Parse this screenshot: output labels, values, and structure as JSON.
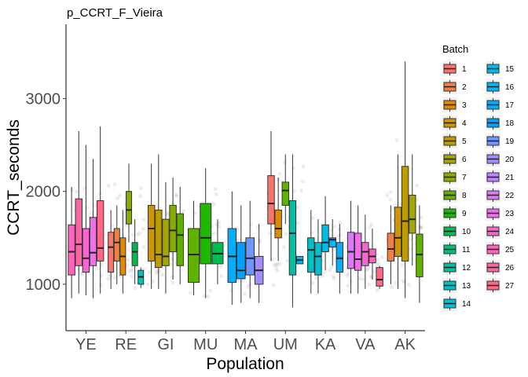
{
  "chart_data": {
    "type": "boxplot",
    "title": "p_CCRT_F_Vieira",
    "xlabel": "Population",
    "ylabel": "CCRT_seconds",
    "ylim": [
      500,
      3800
    ],
    "yticks": [
      1000,
      2000,
      3000
    ],
    "ytick_labels": [
      "1000",
      "2000",
      "3000"
    ],
    "categories": [
      "YE",
      "RE",
      "GI",
      "MU",
      "MA",
      "UM",
      "KA",
      "VA",
      "AK"
    ],
    "legend": {
      "title": "Batch",
      "placement": "right",
      "entries": [
        "1",
        "2",
        "3",
        "4",
        "5",
        "6",
        "7",
        "8",
        "9",
        "10",
        "11",
        "12",
        "13",
        "14",
        "15",
        "16",
        "17",
        "18",
        "19",
        "20",
        "21",
        "22",
        "23",
        "24",
        "25",
        "26",
        "27"
      ]
    },
    "batch_colors": [
      "#F8766D",
      "#EE8044",
      "#E18A00",
      "#CF9400",
      "#BB9D00",
      "#A3A500",
      "#86AC00",
      "#61B200",
      "#1EB800",
      "#00BC4F",
      "#00BF7C",
      "#00C0A0",
      "#00C1BE",
      "#00BFD6",
      "#00BCEB",
      "#00B6FA",
      "#00ADFF",
      "#00A1FF",
      "#6F96FF",
      "#A38CFF",
      "#C283FF",
      "#DB79F9",
      "#EE6FE8",
      "#F966D3",
      "#FF63BC",
      "#FF64A2",
      "#FF6886"
    ],
    "groups": [
      {
        "population": "YE",
        "boxes": [
          {
            "batch": 25,
            "q1": 1100,
            "median": 1350,
            "q3": 1640,
            "min": 850,
            "max": 2050
          },
          {
            "batch": 26,
            "q1": 1200,
            "median": 1430,
            "q3": 1920,
            "min": 900,
            "max": 2650
          },
          {
            "batch": 24,
            "q1": 1130,
            "median": 1280,
            "q3": 1600,
            "min": 880,
            "max": 2500
          },
          {
            "batch": 23,
            "q1": 1200,
            "median": 1340,
            "q3": 1720,
            "min": 850,
            "max": 2350
          },
          {
            "batch": 27,
            "q1": 1250,
            "median": 1390,
            "q3": 1900,
            "min": 900,
            "max": 2700
          }
        ]
      },
      {
        "population": "RE",
        "boxes": [
          {
            "batch": 1,
            "q1": 1130,
            "median": 1400,
            "q3": 1560,
            "min": 950,
            "max": 1800
          },
          {
            "batch": 2,
            "q1": 1250,
            "median": 1450,
            "q3": 1600,
            "min": 1000,
            "max": 1850
          },
          {
            "batch": 3,
            "q1": 1100,
            "median": 1300,
            "q3": 1500,
            "min": 900,
            "max": 1800
          },
          {
            "batch": 7,
            "q1": 1650,
            "median": 1800,
            "q3": 2000,
            "min": 1450,
            "max": 2300
          },
          {
            "batch": 10,
            "q1": 1200,
            "median": 1350,
            "q3": 1450,
            "min": 1000,
            "max": 1700
          },
          {
            "batch": 13,
            "q1": 1000,
            "median": 1080,
            "q3": 1150,
            "min": 960,
            "max": 1180
          }
        ]
      },
      {
        "population": "GI",
        "boxes": [
          {
            "batch": 4,
            "q1": 1250,
            "median": 1600,
            "q3": 1850,
            "min": 950,
            "max": 2300
          },
          {
            "batch": 5,
            "q1": 1180,
            "median": 1320,
            "q3": 1800,
            "min": 950,
            "max": 2400
          },
          {
            "batch": 6,
            "q1": 1200,
            "median": 1300,
            "q3": 1700,
            "min": 900,
            "max": 2100
          },
          {
            "batch": 7,
            "q1": 1350,
            "median": 1580,
            "q3": 1850,
            "min": 1050,
            "max": 2150
          },
          {
            "batch": 8,
            "q1": 1200,
            "median": 1530,
            "q3": 1760,
            "min": 1000,
            "max": 2050
          }
        ]
      },
      {
        "population": "MU",
        "boxes": [
          {
            "batch": 8,
            "q1": 1020,
            "median": 1320,
            "q3": 1600,
            "min": 880,
            "max": 1900
          },
          {
            "batch": 9,
            "q1": 1220,
            "median": 1500,
            "q3": 1870,
            "min": 850,
            "max": 2250
          },
          {
            "batch": 10,
            "q1": 1220,
            "median": 1330,
            "q3": 1450,
            "min": 1000,
            "max": 1700
          }
        ]
      },
      {
        "population": "MA",
        "boxes": [
          {
            "batch": 17,
            "q1": 1020,
            "median": 1300,
            "q3": 1600,
            "min": 780,
            "max": 2000
          },
          {
            "batch": 18,
            "q1": 1060,
            "median": 1150,
            "q3": 1450,
            "min": 800,
            "max": 1850
          },
          {
            "batch": 19,
            "q1": 1100,
            "median": 1280,
            "q3": 1500,
            "min": 850,
            "max": 1900
          },
          {
            "batch": 20,
            "q1": 1000,
            "median": 1150,
            "q3": 1300,
            "min": 800,
            "max": 1650
          }
        ]
      },
      {
        "population": "UM",
        "boxes": [
          {
            "batch": 1,
            "q1": 1650,
            "median": 1870,
            "q3": 2170,
            "min": 1250,
            "max": 2650
          },
          {
            "batch": 3,
            "q1": 1500,
            "median": 1600,
            "q3": 1800,
            "min": 1250,
            "max": 2150
          },
          {
            "batch": 8,
            "q1": 1850,
            "median": 2010,
            "q3": 2100,
            "min": 1650,
            "max": 2400
          },
          {
            "batch": 12,
            "q1": 1100,
            "median": 1550,
            "q3": 1900,
            "min": 750,
            "max": 2400
          },
          {
            "batch": 16,
            "q1": 1220,
            "median": 1260,
            "q3": 1300,
            "min": 1220,
            "max": 1300
          }
        ]
      },
      {
        "population": "KA",
        "boxes": [
          {
            "batch": 13,
            "q1": 1130,
            "median": 1370,
            "q3": 1500,
            "min": 900,
            "max": 1800
          },
          {
            "batch": 14,
            "q1": 1100,
            "median": 1300,
            "q3": 1450,
            "min": 900,
            "max": 1700
          },
          {
            "batch": 15,
            "q1": 1350,
            "median": 1450,
            "q3": 1640,
            "min": 1150,
            "max": 1950
          },
          {
            "batch": 16,
            "q1": 1400,
            "median": 1480,
            "q3": 1500,
            "min": 1200,
            "max": 1700
          },
          {
            "batch": 17,
            "q1": 1130,
            "median": 1280,
            "q3": 1450,
            "min": 900,
            "max": 1650
          }
        ]
      },
      {
        "population": "VA",
        "boxes": [
          {
            "batch": 22,
            "q1": 1170,
            "median": 1350,
            "q3": 1560,
            "min": 900,
            "max": 1900
          },
          {
            "batch": 23,
            "q1": 1150,
            "median": 1270,
            "q3": 1550,
            "min": 900,
            "max": 1850
          },
          {
            "batch": 24,
            "q1": 1200,
            "median": 1350,
            "q3": 1450,
            "min": 950,
            "max": 1750
          },
          {
            "batch": 25,
            "q1": 1230,
            "median": 1300,
            "q3": 1380,
            "min": 1050,
            "max": 1600
          },
          {
            "batch": 27,
            "q1": 980,
            "median": 1050,
            "q3": 1180,
            "min": 950,
            "max": 1200
          }
        ]
      },
      {
        "population": "AK",
        "boxes": [
          {
            "batch": 2,
            "q1": 1250,
            "median": 1380,
            "q3": 1550,
            "min": 1000,
            "max": 1850
          },
          {
            "batch": 4,
            "q1": 1300,
            "median": 1500,
            "q3": 1830,
            "min": 950,
            "max": 2400
          },
          {
            "batch": 5,
            "q1": 1250,
            "median": 1680,
            "q3": 2270,
            "min": 850,
            "max": 3400
          },
          {
            "batch": 6,
            "q1": 1550,
            "median": 1700,
            "q3": 1960,
            "min": 1200,
            "max": 2400
          },
          {
            "batch": 8,
            "q1": 1080,
            "median": 1320,
            "q3": 1540,
            "min": 800,
            "max": 1850
          }
        ]
      }
    ]
  }
}
